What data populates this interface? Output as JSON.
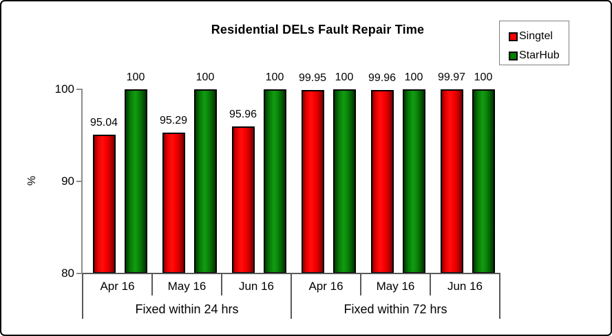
{
  "chart_data": {
    "type": "bar",
    "title": "Residential DELs Fault Repair Time",
    "ylabel": "%",
    "ylim": [
      80,
      100
    ],
    "yticks": [
      100,
      90,
      80
    ],
    "grid": false,
    "legend_position": "top-right",
    "categories": [
      "Apr 16",
      "May 16",
      "Jun 16",
      "Apr 16",
      "May 16",
      "Jun 16"
    ],
    "groups": [
      {
        "label": "Fixed within 24 hrs",
        "span": [
          0,
          2
        ]
      },
      {
        "label": "Fixed within 72 hrs",
        "span": [
          3,
          5
        ]
      }
    ],
    "series": [
      {
        "name": "Singtel",
        "color": "#ff0000",
        "values": [
          95.04,
          95.29,
          95.96,
          99.95,
          99.96,
          99.97
        ]
      },
      {
        "name": "StarHub",
        "color": "#008000",
        "values": [
          100,
          100,
          100,
          100,
          100,
          100
        ]
      }
    ],
    "data_labels": true
  },
  "legend": {
    "items": [
      {
        "label": "Singtel",
        "color": "#ff0000"
      },
      {
        "label": "StarHub",
        "color": "#008000"
      }
    ]
  },
  "colors": {
    "axis_line": "#8c8c8c",
    "category_line": "#595959",
    "bar_border": "#000000",
    "frame_border": "#000000",
    "background": "#ffffff"
  }
}
